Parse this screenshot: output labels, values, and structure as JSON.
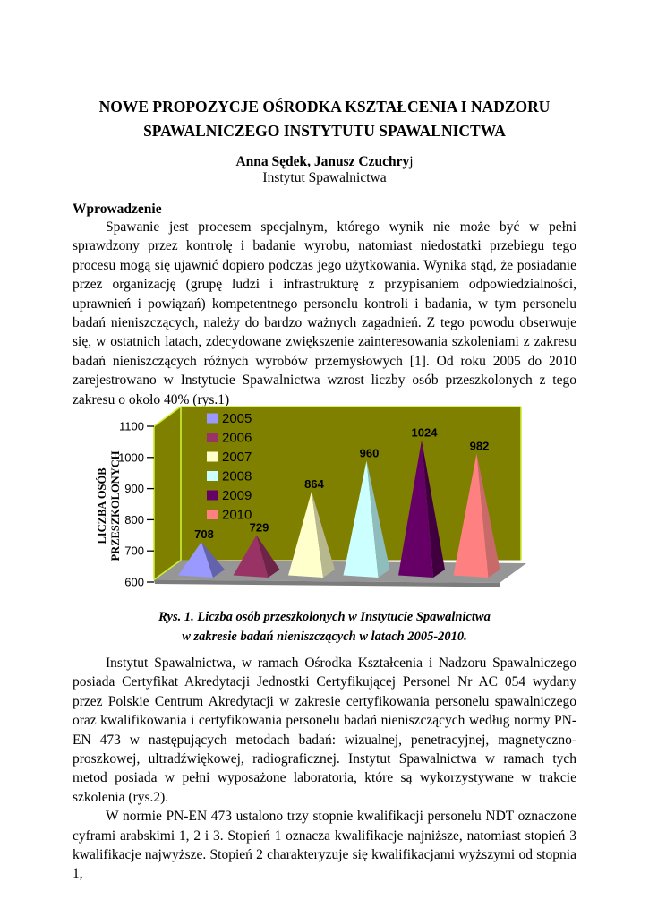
{
  "page": {
    "title_line1": "NOWE PROPOZYCJE OŚRODKA KSZTAŁCENIA I NADZORU",
    "title_line2": "SPAWALNICZEGO INSTYTUTU SPAWALNICTWA",
    "authors_bold": "Anna Sędek, Janusz Czuchry",
    "authors_suffix": "j",
    "affiliation": "Instytut Spawalnictwa",
    "section_heading": "Wprowadzenie",
    "paragraph1": "Spawanie jest procesem specjalnym, którego wynik nie może być w pełni sprawdzony przez kontrolę i badanie wyrobu, natomiast niedostatki przebiegu tego procesu mogą się ujawnić dopiero podczas jego użytkowania. Wynika stąd, że posiadanie przez organizację (grupę ludzi i infrastrukturę z przypisaniem odpowiedzialności, uprawnień i powiązań) kompetentnego personelu kontroli i badania, w tym personelu badań nieniszczących, należy do bardzo ważnych zagadnień. Z tego powodu obserwuje się, w ostatnich latach, zdecydowane zwiększenie zainteresowania szkoleniami z zakresu badań nieniszczących różnych wyrobów przemysłowych [1]. Od roku 2005 do 2010 zarejestrowano w Instytucie Spawalnictwa wzrost liczby osób przeszkolonych z tego zakresu o około 40% (rys.1)",
    "caption_line1": "Rys. 1. Liczba osób przeszkolonych w Instytucie Spawalnictwa",
    "caption_line2": "w zakresie badań nieniszczących w latach 2005-2010.",
    "paragraph2": "Instytut Spawalnictwa, w ramach Ośrodka Kształcenia i Nadzoru Spawalniczego posiada Certyfikat Akredytacji Jednostki Certyfikującej Personel Nr AC 054 wydany przez Polskie Centrum Akredytacji w zakresie certyfikowania personelu spawalniczego oraz kwalifikowania i certyfikowania personelu badań nieniszczących według normy PN-EN 473 w następujących metodach badań: wizualnej, penetracyjnej, magnetyczno-proszkowej, ultradźwiękowej, radiograficznej. Instytut Spawalnictwa w ramach tych metod posiada w pełni wyposażone laboratoria, które są wykorzystywane w trakcie szkolenia (rys.2).",
    "paragraph3": "W normie PN-EN 473 ustalono trzy stopnie kwalifikacji personelu NDT oznaczone cyframi arabskimi 1, 2 i 3. Stopień 1 oznacza kwalifikacje najniższe, natomiast stopień 3 kwalifikacje najwyższe. Stopień 2 charakteryzuje się kwalifikacjami wyższymi od stopnia 1,"
  },
  "chart_data": {
    "type": "bar",
    "render_style": "3d-pyramid",
    "categories": [
      "2005",
      "2006",
      "2007",
      "2008",
      "2009",
      "2010"
    ],
    "values": [
      708,
      729,
      864,
      960,
      1024,
      982
    ],
    "title": "",
    "xlabel": "",
    "ylabel_lines": [
      "LICZBA OSÓB",
      "PRZESZKOLONYCH"
    ],
    "yticks": [
      600,
      700,
      800,
      900,
      1000,
      1100
    ],
    "ylim": [
      600,
      1100
    ],
    "grid": false,
    "legend_position": "upper-left-inside",
    "colors": {
      "series_front": [
        "#9999FF",
        "#993366",
        "#FFFFCC",
        "#CCFFFF",
        "#660066",
        "#FF8080"
      ],
      "series_side": [
        "#6363AD",
        "#6E2449",
        "#B8B890",
        "#8FBCBC",
        "#400040",
        "#C96A6A"
      ],
      "wall": "#808000",
      "floor": "#969696",
      "floor_edge": "#7C7C7C",
      "edge_highlight": "#CCEE33",
      "label_color": "#000000"
    }
  }
}
